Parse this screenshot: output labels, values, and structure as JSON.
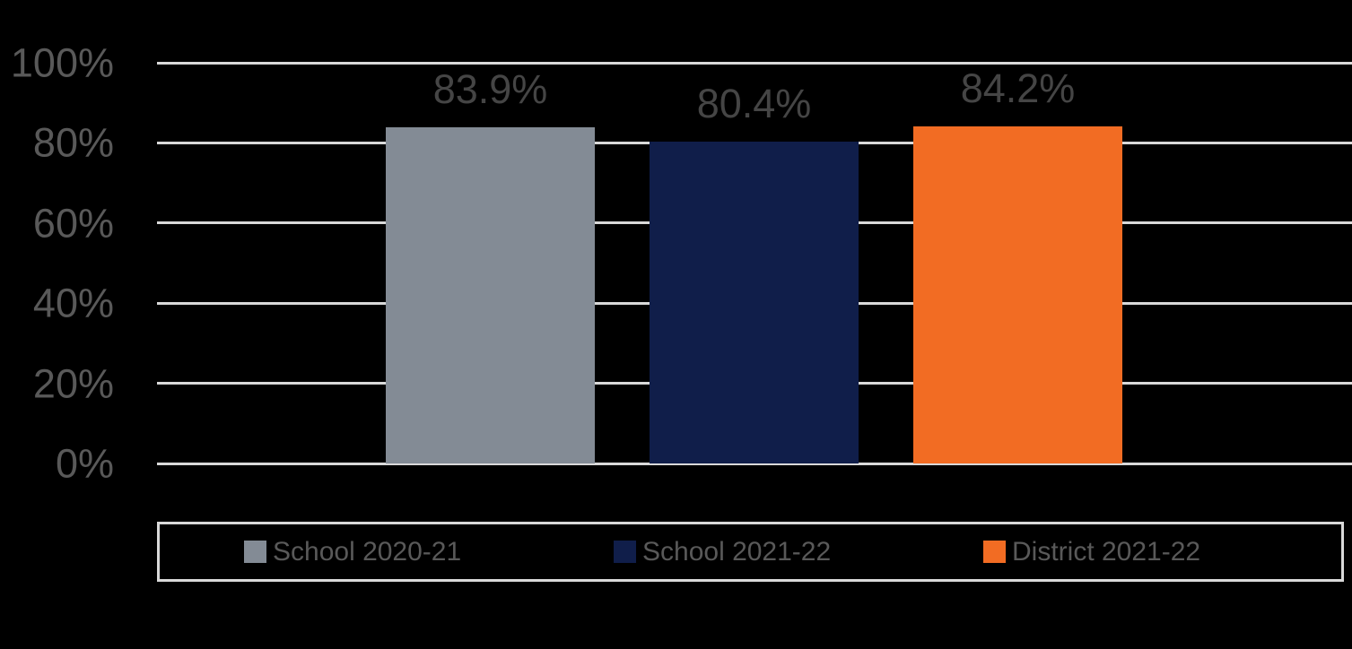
{
  "background": "#000000",
  "chart_data": {
    "type": "bar",
    "title": "",
    "xlabel": "",
    "ylabel": "",
    "categories": [
      "School 2020-21",
      "School 2021-22",
      "District 2021-22"
    ],
    "values": [
      83.9,
      80.4,
      84.2
    ],
    "series": [
      {
        "name": "School 2020-21",
        "value": 83.9,
        "label": "83.9%",
        "color": "#838B95"
      },
      {
        "name": "School 2021-22",
        "value": 80.4,
        "label": "80.4%",
        "color": "#101E4A"
      },
      {
        "name": "District 2021-22",
        "value": 84.2,
        "label": "84.2%",
        "color": "#F26C23"
      }
    ],
    "ylim": [
      0,
      100
    ],
    "yticks": [
      {
        "value": 100,
        "label": "100%"
      },
      {
        "value": 80,
        "label": "80%"
      },
      {
        "value": 60,
        "label": "60%"
      },
      {
        "value": 40,
        "label": "40%"
      },
      {
        "value": 20,
        "label": "20%"
      },
      {
        "value": 0,
        "label": "0%"
      }
    ],
    "grid": true,
    "legend_position": "bottom"
  },
  "colors": {
    "gridline": "#D9D9D9",
    "axis_label": "#595959",
    "data_label": "#454545",
    "legend_text": "#595959",
    "legend_border": "#D9D9D9"
  }
}
